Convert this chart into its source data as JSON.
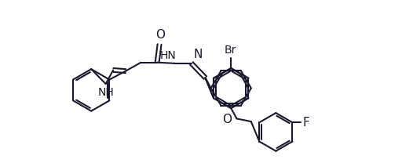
{
  "bg_color": "#ffffff",
  "line_color": "#1a1a2e",
  "line_width": 1.5,
  "figsize": [
    5.12,
    2.08
  ],
  "dpi": 100,
  "xlim": [
    0,
    14.5
  ],
  "ylim": [
    0,
    8.5
  ]
}
